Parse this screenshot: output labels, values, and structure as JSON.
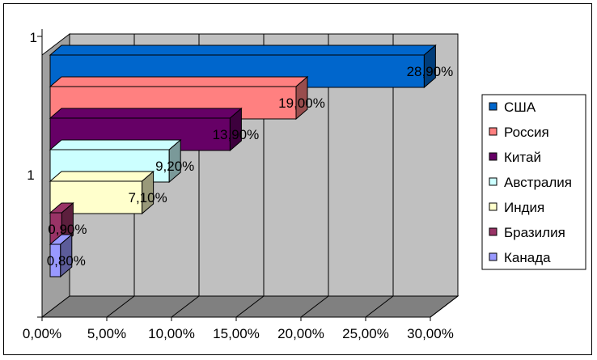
{
  "chart_data": {
    "type": "bar",
    "orientation": "horizontal",
    "three_d": true,
    "categories": [
      "1"
    ],
    "series": [
      {
        "name": "США",
        "value": 28.9,
        "label": "28,90%",
        "color": "#0066CC"
      },
      {
        "name": "Россия",
        "value": 19.0,
        "label": "19,00%",
        "color": "#FF8080"
      },
      {
        "name": "Китай",
        "value": 13.9,
        "label": "13,90%",
        "color": "#660066"
      },
      {
        "name": "Австралия",
        "value": 9.2,
        "label": "9,20%",
        "color": "#CCFFFF"
      },
      {
        "name": "Индия",
        "value": 7.1,
        "label": "7,10%",
        "color": "#FFFFCC"
      },
      {
        "name": "Бразилия",
        "value": 0.9,
        "label": "0,90%",
        "color": "#993366"
      },
      {
        "name": "Канада",
        "value": 0.8,
        "label": "0,80%",
        "color": "#9999FF"
      }
    ],
    "x_ticks": [
      "0,00%",
      "5,00%",
      "10,00%",
      "15,00%",
      "20,00%",
      "25,00%",
      "30,00%"
    ],
    "xlim": [
      0,
      30
    ],
    "grid": true,
    "legend_position": "right",
    "wall_color": "#C0C0C0",
    "floor_color": "#808080"
  }
}
